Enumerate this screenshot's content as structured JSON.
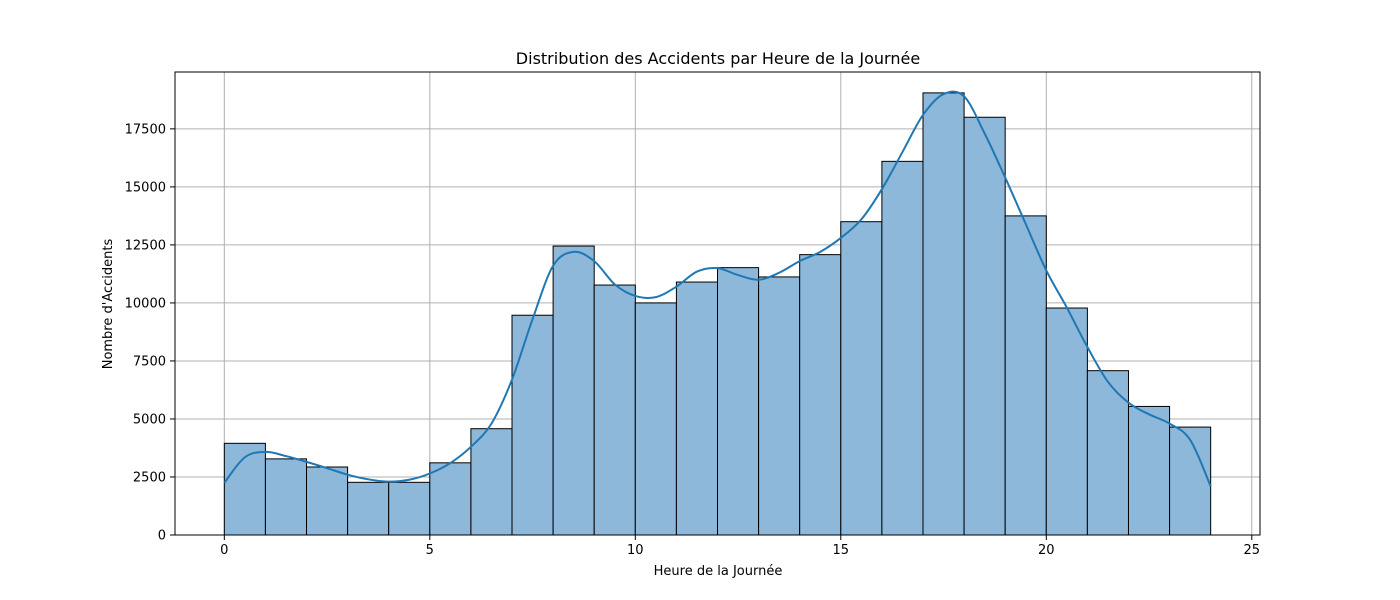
{
  "chart_data": {
    "type": "bar",
    "title": "Distribution des Accidents par Heure de la Journée",
    "xlabel": "Heure de la Journée",
    "ylabel": "Nombre d'Accidents",
    "xlim": [
      -1.2,
      25.2
    ],
    "ylim": [
      0,
      19950
    ],
    "xticks": [
      0,
      5,
      10,
      15,
      20,
      25
    ],
    "yticks": [
      0,
      2500,
      5000,
      7500,
      10000,
      12500,
      15000,
      17500
    ],
    "grid": true,
    "bin_edges": [
      0,
      1,
      2,
      3,
      4,
      5,
      6,
      7,
      8,
      9,
      10,
      11,
      12,
      13,
      14,
      15,
      16,
      17,
      18,
      19,
      20,
      21,
      22,
      23,
      24
    ],
    "values": [
      3950,
      3280,
      2930,
      2270,
      2270,
      3110,
      4580,
      9470,
      12450,
      10770,
      10000,
      10900,
      11520,
      11120,
      12080,
      13500,
      16100,
      19050,
      18000,
      13750,
      9780,
      7080,
      5540,
      4650
    ],
    "kde": {
      "x": [
        0,
        0.5,
        1,
        1.5,
        2,
        2.5,
        3,
        3.5,
        4,
        4.5,
        5,
        5.5,
        6,
        6.5,
        7,
        7.5,
        8,
        8.5,
        9,
        9.5,
        10,
        10.5,
        11,
        11.5,
        12,
        12.5,
        13,
        13.5,
        14,
        14.5,
        15,
        15.5,
        16,
        16.5,
        17,
        17.5,
        18,
        18.5,
        19,
        19.5,
        20,
        20.5,
        21,
        21.5,
        22,
        22.5,
        23,
        23.5,
        24
      ],
      "y": [
        2250,
        3350,
        3580,
        3400,
        3150,
        2880,
        2600,
        2400,
        2300,
        2380,
        2650,
        3100,
        3800,
        4800,
        6700,
        9300,
        11600,
        12200,
        11800,
        10800,
        10300,
        10250,
        10700,
        11350,
        11500,
        11200,
        11000,
        11300,
        11800,
        12200,
        12800,
        13600,
        14900,
        16500,
        18100,
        19000,
        18900,
        17300,
        15400,
        13400,
        11400,
        9800,
        8100,
        6600,
        5700,
        5200,
        4800,
        4100,
        2100
      ]
    },
    "bar_color": "#8db8da",
    "edge_color": "#000000",
    "line_color": "#1f77b4",
    "grid_color": "#b0b0b0"
  }
}
